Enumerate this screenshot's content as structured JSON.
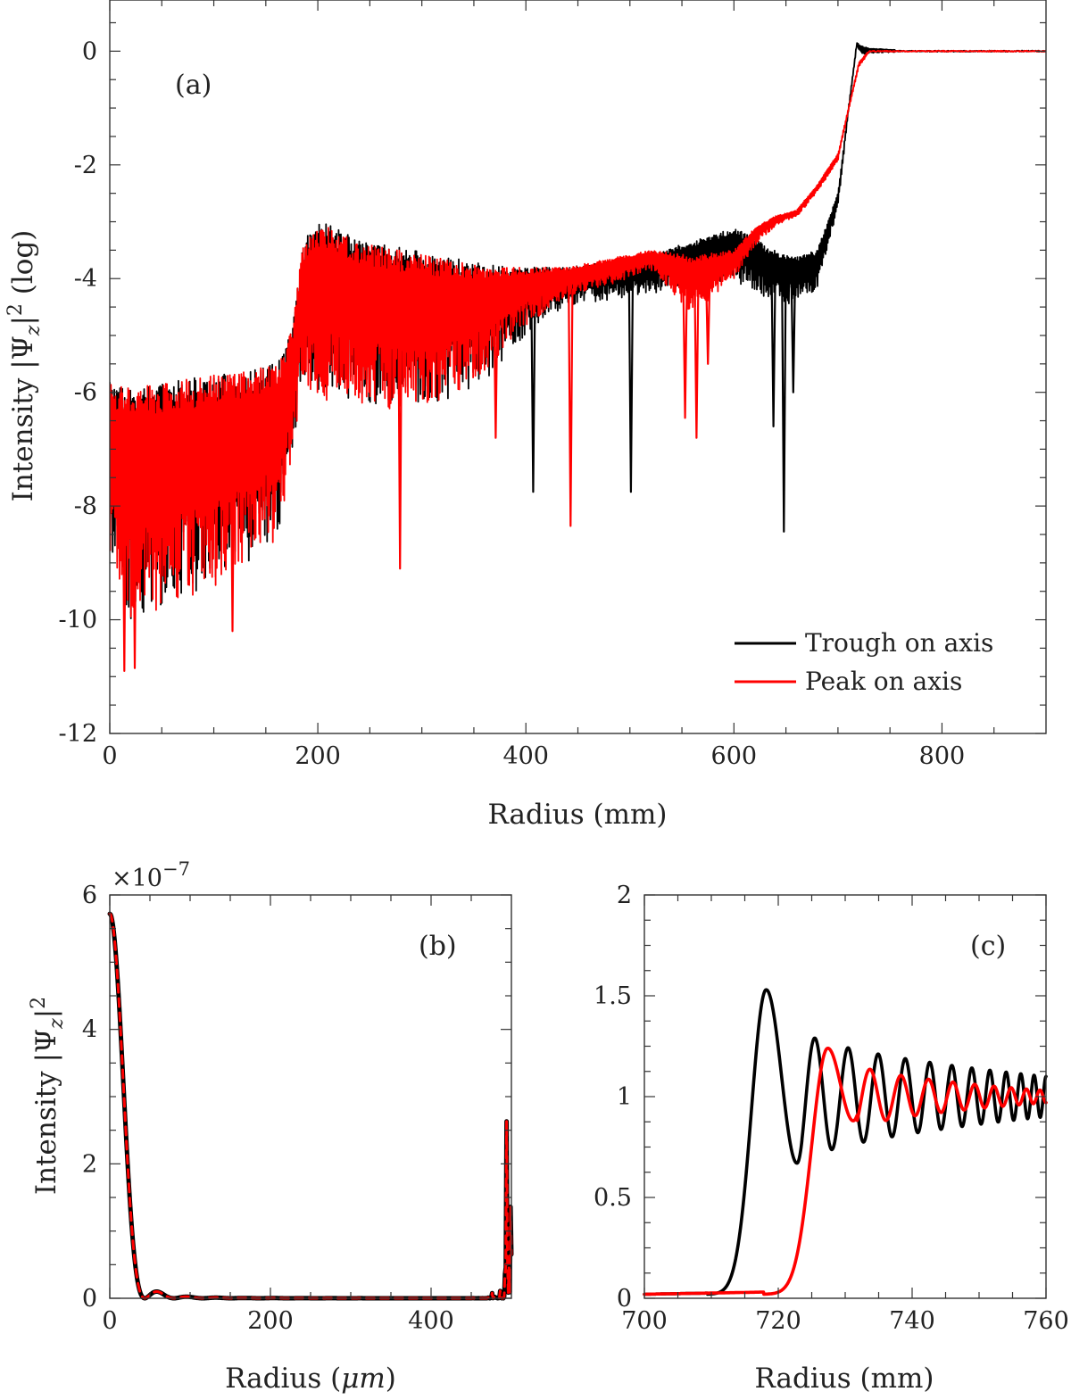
{
  "chart_data": [
    {
      "panel": "(a)",
      "type": "line",
      "xlabel": "Radius (mm)",
      "ylabel": "Intensity |Ψ_z|² (log)",
      "ylabel_parts": {
        "prefix": "Intensity |Ψ",
        "sub": "z",
        "suffix_bar": "|",
        "sup": "2",
        "tail": " (log)"
      },
      "xlim": [
        0,
        900
      ],
      "ylim": [
        -12,
        0.9
      ],
      "xticks": [
        0,
        200,
        400,
        600,
        800
      ],
      "yticks": [
        -12,
        -10,
        -8,
        -6,
        -4,
        -2,
        0
      ],
      "grid": false,
      "legend": {
        "placement": "bottom-right",
        "entries": [
          "Trough on axis",
          "Peak on axis"
        ]
      },
      "series": [
        {
          "name": "Trough on axis",
          "color": "#000000",
          "envelope": {
            "x": [
              0,
              20,
              60,
              100,
              140,
              165,
              175,
              185,
              195,
              210,
              240,
              280,
              320,
              360,
              400,
              440,
              480,
              520,
              560,
              600,
              640,
              660,
              680,
              700,
              710,
              715,
              718,
              722,
              730,
              760,
              800,
              900
            ],
            "upper": [
              -5.8,
              -5.9,
              -5.8,
              -5.7,
              -5.6,
              -5.4,
              -4.9,
              -3.5,
              -3.0,
              -3.05,
              -3.3,
              -3.45,
              -3.6,
              -3.75,
              -3.8,
              -3.8,
              -3.7,
              -3.55,
              -3.35,
              -3.1,
              -3.5,
              -3.6,
              -3.5,
              -2.5,
              -1.0,
              -0.3,
              0.15,
              0.1,
              0.05,
              0.02,
              0.01,
              0.0
            ],
            "lower": [
              -9.3,
              -10.7,
              -10.4,
              -10.0,
              -9.5,
              -9.0,
              -7.5,
              -6.2,
              -6.4,
              -6.6,
              -6.7,
              -6.7,
              -6.6,
              -6.2,
              -5.2,
              -4.6,
              -4.5,
              -4.4,
              -4.2,
              -4.2,
              -4.6,
              -4.6,
              -4.3,
              -2.8,
              -1.1,
              -0.4,
              0.05,
              -0.1,
              -0.05,
              -0.02,
              -0.01,
              0.0
            ]
          },
          "dips": [
            [
              407,
              -7.75
            ],
            [
              501,
              -7.75
            ],
            [
              648,
              -8.45
            ],
            [
              638,
              -6.6
            ],
            [
              657,
              -6.0
            ]
          ]
        },
        {
          "name": "Peak on axis",
          "color": "#ff0000",
          "envelope": {
            "x": [
              0,
              20,
              60,
              100,
              140,
              165,
              175,
              185,
              195,
              210,
              240,
              280,
              320,
              360,
              400,
              440,
              480,
              520,
              560,
              600,
              620,
              640,
              660,
              680,
              700,
              710,
              720,
              730,
              760,
              800,
              900
            ],
            "upper": [
              -5.8,
              -5.9,
              -5.8,
              -5.7,
              -5.6,
              -5.4,
              -4.9,
              -3.5,
              -3.05,
              -3.1,
              -3.35,
              -3.5,
              -3.65,
              -3.75,
              -3.8,
              -3.8,
              -3.65,
              -3.5,
              -3.6,
              -3.5,
              -3.1,
              -2.9,
              -2.8,
              -2.35,
              -1.8,
              -1.0,
              -0.2,
              0.02,
              0.01,
              0.0,
              0.0
            ],
            "lower": [
              -9.5,
              -10.9,
              -10.5,
              -10.1,
              -9.6,
              -9.0,
              -7.5,
              -6.3,
              -6.5,
              -6.7,
              -6.8,
              -6.8,
              -6.6,
              -6.0,
              -5.0,
              -4.4,
              -4.2,
              -3.9,
              -4.8,
              -4.1,
              -3.5,
              -3.1,
              -2.95,
              -2.5,
              -1.95,
              -1.1,
              -0.3,
              -0.02,
              -0.01,
              0.0,
              0.0
            ]
          },
          "dips": [
            [
              14,
              -10.9
            ],
            [
              24,
              -10.85
            ],
            [
              118,
              -10.2
            ],
            [
              279,
              -9.1
            ],
            [
              443,
              -8.35
            ],
            [
              371,
              -6.8
            ],
            [
              553,
              -6.45
            ],
            [
              564,
              -6.8
            ],
            [
              575,
              -5.5
            ]
          ]
        }
      ]
    },
    {
      "panel": "(b)",
      "type": "line",
      "xlabel": "Radius (μm)",
      "xlabel_parts": {
        "prefix": "Radius (",
        "unit": "μm",
        "suffix": ")"
      },
      "ylabel": "Intensity |Ψ_z|²",
      "ylabel_parts": {
        "prefix": "Intensity |Ψ",
        "sub": "z",
        "suffix_bar": "|",
        "sup": "2"
      },
      "y_multiplier": "×10",
      "y_multiplier_exp": "−7",
      "xlim": [
        0,
        500
      ],
      "ylim": [
        0,
        6
      ],
      "xticks": [
        0,
        200,
        400
      ],
      "yticks": [
        0,
        2,
        4,
        6
      ],
      "grid": false,
      "model": {
        "type": "airy",
        "peak": 5.72,
        "first_zero_um": 43.5
      },
      "series": [
        {
          "name": "Trough on axis",
          "color": "#000000",
          "style": "solid"
        },
        {
          "name": "Peak on axis",
          "color": "#ff0000",
          "style": "dashed"
        }
      ]
    },
    {
      "panel": "(c)",
      "type": "line",
      "xlabel": "Radius (mm)",
      "xlim": [
        700,
        760
      ],
      "ylim": [
        0,
        2
      ],
      "xticks": [
        700,
        720,
        740,
        760
      ],
      "yticks": [
        0,
        0.5,
        1,
        1.5,
        2
      ],
      "ytick_labels": [
        "0",
        "0.5",
        "1",
        "1.5",
        "2"
      ],
      "grid": false,
      "series": [
        {
          "name": "Trough on axis",
          "color": "#000000",
          "edge_center": 714.5,
          "edge_width": 2.2,
          "first_peak": [
            718.2,
            1.53
          ],
          "first_min": [
            722.8,
            0.67
          ],
          "osc_amplitude_start": 0.36,
          "osc_amplitude_end": 0.1,
          "osc_period_start": 5.5,
          "osc_period_end": 1.7
        },
        {
          "name": "Peak on axis",
          "color": "#ff0000",
          "edge_center": 722.3,
          "edge_width": 2.4,
          "first_peak": [
            727.4,
            1.24
          ],
          "first_min": [
            731.2,
            0.88
          ],
          "osc_amplitude_start": 0.18,
          "osc_amplitude_end": 0.03,
          "osc_period_start": 5.2,
          "osc_period_end": 1.8
        }
      ]
    }
  ]
}
